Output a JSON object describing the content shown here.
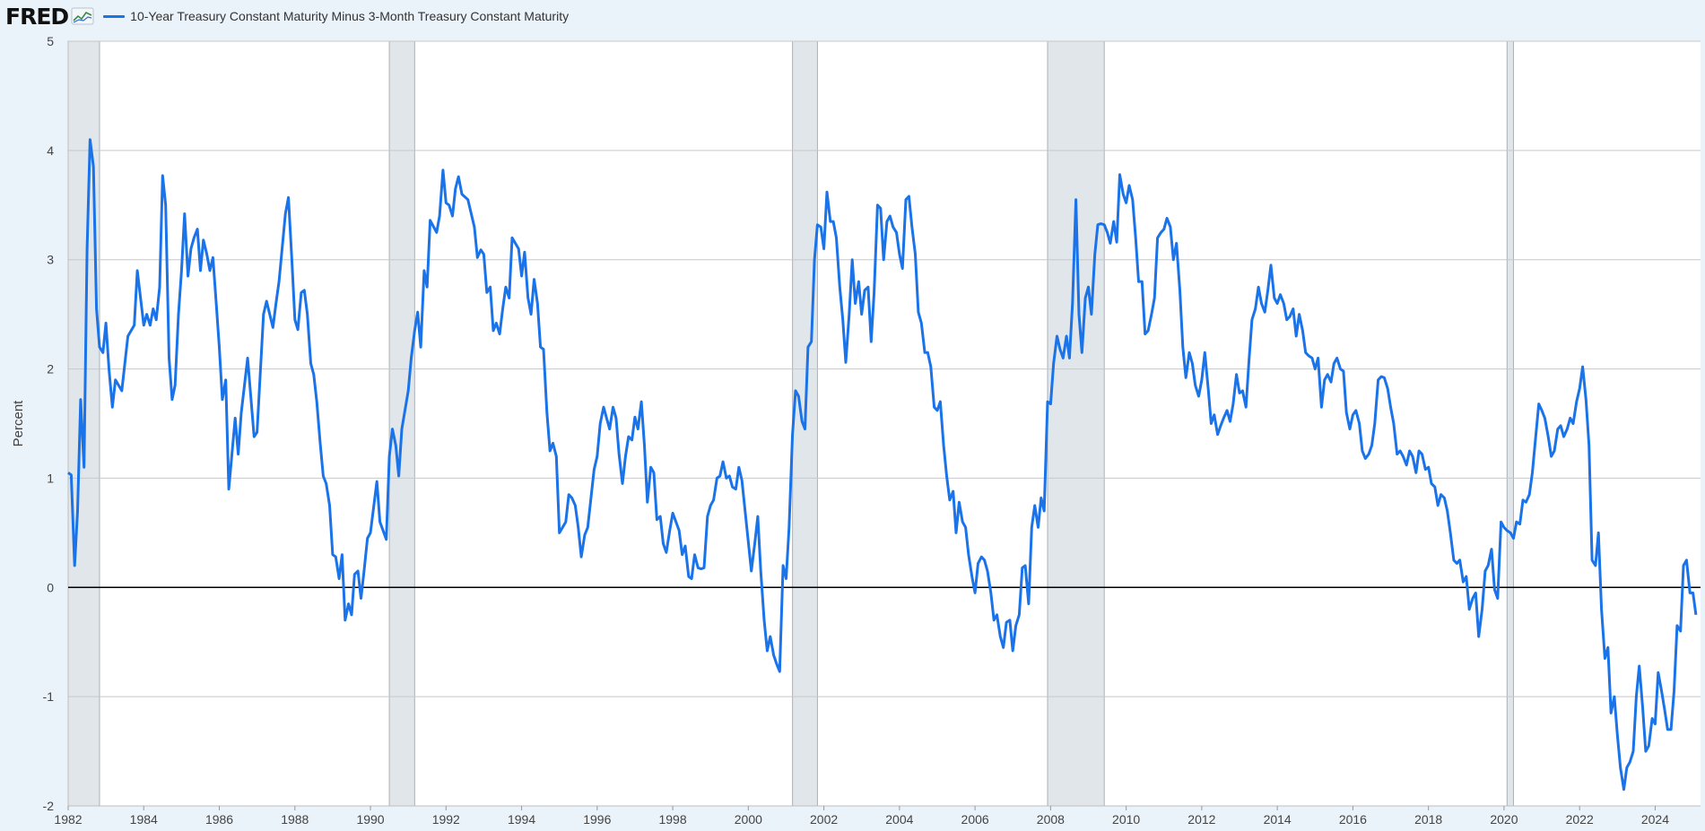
{
  "header": {
    "logo_text": "FRED",
    "legend_label": "10-Year Treasury Constant Maturity Minus 3-Month Treasury Constant Maturity"
  },
  "colors": {
    "series": "#1a73e8",
    "recession": "#e1e6ea",
    "background": "#eaf2fa",
    "plot": "#ffffff",
    "grid": "#c8c8c8"
  },
  "chart_data": {
    "type": "line",
    "title": "10-Year Treasury Constant Maturity Minus 3-Month Treasury Constant Maturity",
    "xlabel": "",
    "ylabel": "Percent",
    "xlim": [
      1982.0,
      2025.2
    ],
    "ylim": [
      -2,
      5
    ],
    "yticks": [
      5,
      4,
      3,
      2,
      1,
      0,
      -1,
      -2
    ],
    "ytick_labels": [
      "5",
      "4",
      "3",
      "2",
      "1",
      "0",
      "-1",
      "-2"
    ],
    "xticks": [
      1982,
      1984,
      1986,
      1988,
      1990,
      1992,
      1994,
      1996,
      1998,
      2000,
      2002,
      2004,
      2006,
      2008,
      2010,
      2012,
      2014,
      2016,
      2018,
      2020,
      2022,
      2024
    ],
    "xtick_labels": [
      "1982",
      "1984",
      "1986",
      "1988",
      "1990",
      "1992",
      "1994",
      "1996",
      "1998",
      "2000",
      "2002",
      "2004",
      "2006",
      "2008",
      "2010",
      "2012",
      "2014",
      "2016",
      "2018",
      "2020",
      "2022",
      "2024"
    ],
    "recessions": [
      [
        1982.0,
        1982.83
      ],
      [
        1990.5,
        1991.17
      ],
      [
        2001.17,
        2001.83
      ],
      [
        2007.92,
        2009.42
      ],
      [
        2020.08,
        2020.25
      ]
    ],
    "zero_line": 0,
    "series": [
      {
        "name": "10-Year Treasury Constant Maturity Minus 3-Month Treasury Constant Maturity",
        "x": [
          1982.0,
          1982.08,
          1982.17,
          1982.25,
          1982.33,
          1982.42,
          1982.5,
          1982.58,
          1982.67,
          1982.75,
          1982.83,
          1982.92,
          1983.0,
          1983.08,
          1983.17,
          1983.25,
          1983.42,
          1983.58,
          1983.75,
          1983.83,
          1984.0,
          1984.08,
          1984.17,
          1984.25,
          1984.33,
          1984.42,
          1984.5,
          1984.58,
          1984.67,
          1984.75,
          1984.83,
          1984.92,
          1985.0,
          1985.08,
          1985.17,
          1985.25,
          1985.33,
          1985.42,
          1985.5,
          1985.58,
          1985.67,
          1985.75,
          1985.83,
          1985.92,
          1986.0,
          1986.08,
          1986.17,
          1986.25,
          1986.42,
          1986.5,
          1986.58,
          1986.75,
          1986.92,
          1987.0,
          1987.17,
          1987.25,
          1987.42,
          1987.5,
          1987.58,
          1987.75,
          1987.83,
          1987.92,
          1988.0,
          1988.08,
          1988.17,
          1988.25,
          1988.33,
          1988.42,
          1988.5,
          1988.58,
          1988.67,
          1988.75,
          1988.83,
          1988.92,
          1989.0,
          1989.08,
          1989.17,
          1989.25,
          1989.33,
          1989.42,
          1989.5,
          1989.58,
          1989.67,
          1989.75,
          1989.83,
          1989.92,
          1990.0,
          1990.17,
          1990.25,
          1990.42,
          1990.5,
          1990.58,
          1990.67,
          1990.75,
          1990.83,
          1991.0,
          1991.08,
          1991.17,
          1991.25,
          1991.33,
          1991.42,
          1991.5,
          1991.58,
          1991.75,
          1991.83,
          1991.92,
          1992.0,
          1992.08,
          1992.17,
          1992.25,
          1992.33,
          1992.42,
          1992.58,
          1992.75,
          1992.83,
          1992.92,
          1993.0,
          1993.08,
          1993.17,
          1993.25,
          1993.33,
          1993.42,
          1993.5,
          1993.58,
          1993.67,
          1993.75,
          1993.92,
          1994.0,
          1994.08,
          1994.17,
          1994.25,
          1994.33,
          1994.42,
          1994.5,
          1994.58,
          1994.67,
          1994.75,
          1994.83,
          1994.92,
          1995.0,
          1995.17,
          1995.25,
          1995.33,
          1995.42,
          1995.5,
          1995.58,
          1995.67,
          1995.75,
          1995.92,
          1996.0,
          1996.08,
          1996.17,
          1996.25,
          1996.33,
          1996.42,
          1996.5,
          1996.58,
          1996.67,
          1996.75,
          1996.83,
          1996.92,
          1997.0,
          1997.08,
          1997.17,
          1997.25,
          1997.33,
          1997.42,
          1997.5,
          1997.58,
          1997.67,
          1997.75,
          1997.83,
          1997.92,
          1998.0,
          1998.17,
          1998.25,
          1998.33,
          1998.42,
          1998.5,
          1998.58,
          1998.67,
          1998.75,
          1998.83,
          1998.92,
          1999.0,
          1999.08,
          1999.17,
          1999.25,
          1999.33,
          1999.42,
          1999.5,
          1999.58,
          1999.67,
          1999.75,
          1999.83,
          1999.92,
          2000.0,
          2000.08,
          2000.17,
          2000.25,
          2000.33,
          2000.42,
          2000.5,
          2000.58,
          2000.67,
          2000.75,
          2000.83,
          2000.92,
          2001.0,
          2001.08,
          2001.17,
          2001.25,
          2001.33,
          2001.42,
          2001.5,
          2001.58,
          2001.67,
          2001.75,
          2001.83,
          2001.92,
          2002.0,
          2002.08,
          2002.17,
          2002.25,
          2002.33,
          2002.42,
          2002.5,
          2002.58,
          2002.67,
          2002.75,
          2002.83,
          2002.92,
          2003.0,
          2003.08,
          2003.17,
          2003.25,
          2003.33,
          2003.42,
          2003.5,
          2003.58,
          2003.67,
          2003.75,
          2003.83,
          2003.92,
          2004.0,
          2004.08,
          2004.17,
          2004.25,
          2004.33,
          2004.42,
          2004.5,
          2004.58,
          2004.67,
          2004.75,
          2004.83,
          2004.92,
          2005.0,
          2005.08,
          2005.17,
          2005.25,
          2005.33,
          2005.42,
          2005.5,
          2005.58,
          2005.67,
          2005.75,
          2005.83,
          2005.92,
          2006.0,
          2006.08,
          2006.17,
          2006.25,
          2006.33,
          2006.42,
          2006.5,
          2006.58,
          2006.67,
          2006.75,
          2006.83,
          2006.92,
          2007.0,
          2007.08,
          2007.17,
          2007.25,
          2007.33,
          2007.42,
          2007.5,
          2007.58,
          2007.67,
          2007.75,
          2007.83,
          2007.92,
          2008.0,
          2008.08,
          2008.17,
          2008.25,
          2008.33,
          2008.42,
          2008.5,
          2008.58,
          2008.67,
          2008.75,
          2008.83,
          2008.92,
          2009.0,
          2009.08,
          2009.17,
          2009.25,
          2009.33,
          2009.42,
          2009.5,
          2009.58,
          2009.67,
          2009.75,
          2009.83,
          2009.92,
          2010.0,
          2010.08,
          2010.17,
          2010.25,
          2010.33,
          2010.42,
          2010.5,
          2010.58,
          2010.67,
          2010.75,
          2010.83,
          2010.92,
          2011.0,
          2011.08,
          2011.17,
          2011.25,
          2011.33,
          2011.42,
          2011.5,
          2011.58,
          2011.67,
          2011.75,
          2011.83,
          2011.92,
          2012.0,
          2012.08,
          2012.17,
          2012.25,
          2012.33,
          2012.42,
          2012.5,
          2012.58,
          2012.67,
          2012.75,
          2012.83,
          2012.92,
          2013.0,
          2013.08,
          2013.17,
          2013.25,
          2013.33,
          2013.42,
          2013.5,
          2013.58,
          2013.67,
          2013.75,
          2013.83,
          2013.92,
          2014.0,
          2014.08,
          2014.17,
          2014.25,
          2014.33,
          2014.42,
          2014.5,
          2014.58,
          2014.67,
          2014.75,
          2014.83,
          2014.92,
          2015.0,
          2015.08,
          2015.17,
          2015.25,
          2015.33,
          2015.42,
          2015.5,
          2015.58,
          2015.67,
          2015.75,
          2015.83,
          2015.92,
          2016.0,
          2016.08,
          2016.17,
          2016.25,
          2016.33,
          2016.42,
          2016.5,
          2016.58,
          2016.67,
          2016.75,
          2016.83,
          2016.92,
          2017.0,
          2017.08,
          2017.17,
          2017.25,
          2017.33,
          2017.42,
          2017.5,
          2017.58,
          2017.67,
          2017.75,
          2017.83,
          2017.92,
          2018.0,
          2018.08,
          2018.17,
          2018.25,
          2018.33,
          2018.42,
          2018.5,
          2018.58,
          2018.67,
          2018.75,
          2018.83,
          2018.92,
          2019.0,
          2019.08,
          2019.17,
          2019.25,
          2019.33,
          2019.42,
          2019.5,
          2019.58,
          2019.67,
          2019.75,
          2019.83,
          2019.92,
          2020.0,
          2020.08,
          2020.17,
          2020.25,
          2020.33,
          2020.42,
          2020.5,
          2020.58,
          2020.67,
          2020.75,
          2020.83,
          2020.92,
          2021.0,
          2021.08,
          2021.17,
          2021.25,
          2021.33,
          2021.42,
          2021.5,
          2021.58,
          2021.67,
          2021.75,
          2021.83,
          2021.92,
          2022.0,
          2022.08,
          2022.17,
          2022.25,
          2022.33,
          2022.42,
          2022.5,
          2022.58,
          2022.67,
          2022.75,
          2022.83,
          2022.92,
          2023.0,
          2023.08,
          2023.17,
          2023.25,
          2023.33,
          2023.42,
          2023.5,
          2023.58,
          2023.67,
          2023.75,
          2023.83,
          2023.92,
          2024.0,
          2024.08,
          2024.17,
          2024.25,
          2024.33,
          2024.42,
          2024.5,
          2024.58,
          2024.67,
          2024.75,
          2024.83,
          2024.92,
          2025.0,
          2025.08
        ],
        "values": [
          1.05,
          1.03,
          0.2,
          0.7,
          1.72,
          1.1,
          3.1,
          4.1,
          3.85,
          2.55,
          2.2,
          2.15,
          2.42,
          2.0,
          1.65,
          1.9,
          1.8,
          2.3,
          2.4,
          2.9,
          2.4,
          2.5,
          2.4,
          2.55,
          2.45,
          2.75,
          3.77,
          3.5,
          2.1,
          1.72,
          1.85,
          2.5,
          2.9,
          3.42,
          2.85,
          3.1,
          3.2,
          3.28,
          2.9,
          3.18,
          3.05,
          2.9,
          3.02,
          2.6,
          2.2,
          1.72,
          1.9,
          0.9,
          1.55,
          1.22,
          1.6,
          2.1,
          1.38,
          1.42,
          2.5,
          2.62,
          2.38,
          2.6,
          2.8,
          3.42,
          3.57,
          3.0,
          2.45,
          2.36,
          2.7,
          2.72,
          2.5,
          2.05,
          1.95,
          1.7,
          1.32,
          1.02,
          0.95,
          0.75,
          0.3,
          0.28,
          0.08,
          0.3,
          -0.3,
          -0.15,
          -0.25,
          0.12,
          0.15,
          -0.1,
          0.15,
          0.45,
          0.5,
          0.97,
          0.6,
          0.44,
          1.2,
          1.45,
          1.3,
          1.02,
          1.45,
          1.8,
          2.1,
          2.35,
          2.52,
          2.2,
          2.9,
          2.75,
          3.36,
          3.25,
          3.4,
          3.82,
          3.52,
          3.5,
          3.4,
          3.65,
          3.76,
          3.6,
          3.55,
          3.3,
          3.02,
          3.09,
          3.05,
          2.7,
          2.75,
          2.35,
          2.42,
          2.32,
          2.55,
          2.75,
          2.65,
          3.2,
          3.1,
          2.85,
          3.07,
          2.65,
          2.5,
          2.82,
          2.6,
          2.2,
          2.18,
          1.6,
          1.25,
          1.32,
          1.2,
          0.5,
          0.6,
          0.85,
          0.82,
          0.75,
          0.55,
          0.28,
          0.48,
          0.55,
          1.08,
          1.2,
          1.5,
          1.65,
          1.55,
          1.45,
          1.65,
          1.55,
          1.22,
          0.95,
          1.2,
          1.38,
          1.35,
          1.56,
          1.45,
          1.7,
          1.3,
          0.78,
          1.1,
          1.05,
          0.62,
          0.65,
          0.4,
          0.32,
          0.52,
          0.68,
          0.52,
          0.3,
          0.38,
          0.1,
          0.08,
          0.3,
          0.18,
          0.17,
          0.18,
          0.65,
          0.75,
          0.8,
          1.0,
          1.02,
          1.15,
          1.0,
          1.02,
          0.92,
          0.9,
          1.1,
          0.98,
          0.68,
          0.42,
          0.15,
          0.4,
          0.65,
          0.15,
          -0.3,
          -0.58,
          -0.45,
          -0.62,
          -0.7,
          -0.77,
          0.2,
          0.08,
          0.55,
          1.4,
          1.8,
          1.75,
          1.52,
          1.45,
          2.2,
          2.25,
          3.0,
          3.32,
          3.3,
          3.1,
          3.62,
          3.35,
          3.35,
          3.2,
          2.75,
          2.45,
          2.06,
          2.5,
          3.0,
          2.6,
          2.8,
          2.5,
          2.72,
          2.75,
          2.25,
          2.7,
          3.5,
          3.47,
          3.0,
          3.35,
          3.4,
          3.3,
          3.25,
          3.05,
          2.92,
          3.55,
          3.58,
          3.3,
          3.05,
          2.52,
          2.42,
          2.15,
          2.15,
          2.02,
          1.65,
          1.62,
          1.7,
          1.3,
          1.02,
          0.8,
          0.88,
          0.5,
          0.78,
          0.6,
          0.55,
          0.3,
          0.1,
          -0.05,
          0.22,
          0.28,
          0.25,
          0.15,
          -0.05,
          -0.3,
          -0.25,
          -0.45,
          -0.55,
          -0.32,
          -0.3,
          -0.58,
          -0.35,
          -0.25,
          0.18,
          0.2,
          -0.15,
          0.55,
          0.75,
          0.55,
          0.82,
          0.7,
          1.7,
          1.68,
          2.05,
          2.3,
          2.18,
          2.1,
          2.3,
          2.1,
          2.6,
          3.55,
          2.5,
          2.15,
          2.65,
          2.75,
          2.5,
          3.05,
          3.32,
          3.33,
          3.32,
          3.25,
          3.15,
          3.35,
          3.16,
          3.78,
          3.6,
          3.52,
          3.68,
          3.55,
          3.2,
          2.8,
          2.8,
          2.32,
          2.35,
          2.5,
          2.65,
          3.2,
          3.25,
          3.28,
          3.38,
          3.3,
          3.0,
          3.15,
          2.72,
          2.2,
          1.92,
          2.15,
          2.05,
          1.85,
          1.75,
          1.9,
          2.15,
          1.82,
          1.5,
          1.58,
          1.4,
          1.48,
          1.55,
          1.62,
          1.52,
          1.68,
          1.95,
          1.78,
          1.8,
          1.65,
          2.08,
          2.45,
          2.55,
          2.75,
          2.6,
          2.52,
          2.72,
          2.95,
          2.65,
          2.6,
          2.68,
          2.6,
          2.45,
          2.48,
          2.55,
          2.3,
          2.5,
          2.35,
          2.15,
          2.12,
          2.1,
          2.0,
          2.1,
          1.65,
          1.9,
          1.95,
          1.88,
          2.05,
          2.1,
          2.0,
          1.98,
          1.6,
          1.45,
          1.58,
          1.62,
          1.5,
          1.25,
          1.18,
          1.22,
          1.3,
          1.5,
          1.9,
          1.93,
          1.92,
          1.82,
          1.65,
          1.5,
          1.22,
          1.25,
          1.2,
          1.12,
          1.25,
          1.2,
          1.05,
          1.25,
          1.22,
          1.08,
          1.1,
          0.95,
          0.92,
          0.75,
          0.85,
          0.82,
          0.7,
          0.5,
          0.25,
          0.22,
          0.25,
          0.05,
          0.1,
          -0.2,
          -0.1,
          -0.05,
          -0.45,
          -0.2,
          0.15,
          0.2,
          0.35,
          -0.02,
          -0.1,
          0.6,
          0.55,
          0.52,
          0.5,
          0.45,
          0.6,
          0.58,
          0.8,
          0.78,
          0.85,
          1.05,
          1.35,
          1.68,
          1.62,
          1.55,
          1.38,
          1.2,
          1.25,
          1.45,
          1.48,
          1.38,
          1.45,
          1.55,
          1.5,
          1.7,
          1.82,
          2.02,
          1.72,
          1.3,
          0.25,
          0.2,
          0.5,
          -0.2,
          -0.65,
          -0.55,
          -1.15,
          -1.0,
          -1.35,
          -1.65,
          -1.85,
          -1.65,
          -1.6,
          -1.5,
          -1.0,
          -0.72,
          -1.1,
          -1.5,
          -1.45,
          -1.2,
          -1.25,
          -0.78,
          -0.95,
          -1.12,
          -1.3,
          -1.3,
          -0.95,
          -0.35,
          -0.4,
          0.2,
          0.25,
          -0.05,
          -0.05,
          -0.25
        ]
      }
    ]
  }
}
